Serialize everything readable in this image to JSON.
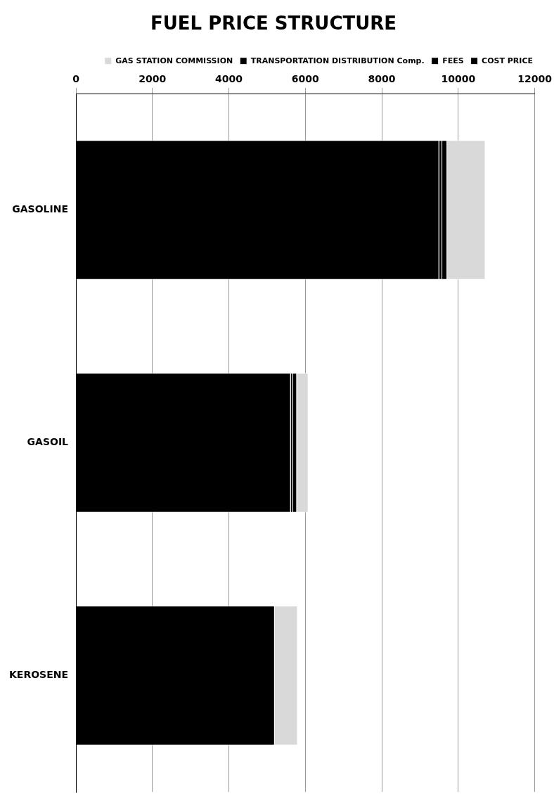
{
  "chart_data": {
    "type": "bar",
    "title": "FUEL PRICE STRUCTURE",
    "orientation": "horizontal",
    "stacked": true,
    "categories": [
      "GASOLINE",
      "GASOIL",
      "KEROSENE"
    ],
    "series": [
      {
        "name": "COST PRICE",
        "color": "#000000",
        "values": [
          9500,
          5620,
          5200
        ]
      },
      {
        "name": "FEES",
        "color": "#000000",
        "values": [
          80,
          60,
          0
        ]
      },
      {
        "name": "TRANSPORTATION DISTRIBUTION Comp.",
        "color": "#000000",
        "values": [
          130,
          100,
          0
        ]
      },
      {
        "name": "GAS STATION COMMISSION",
        "color": "#d9d9d9",
        "values": [
          1000,
          300,
          600
        ]
      }
    ],
    "xlim": [
      0,
      12000
    ],
    "xticks": [
      0,
      2000,
      4000,
      6000,
      8000,
      10000,
      12000
    ],
    "grid": "x",
    "legend": "top right"
  }
}
